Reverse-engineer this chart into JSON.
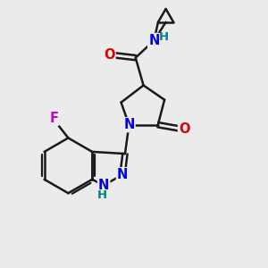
{
  "background_color": "#ebebeb",
  "bond_color": "#1a1a1a",
  "bond_width": 1.8,
  "atom_colors": {
    "N": "#0000e0",
    "O": "#dd0000",
    "F": "#cc00cc",
    "C": "#1a1a1a",
    "H": "#008080"
  },
  "font_size": 9.5
}
